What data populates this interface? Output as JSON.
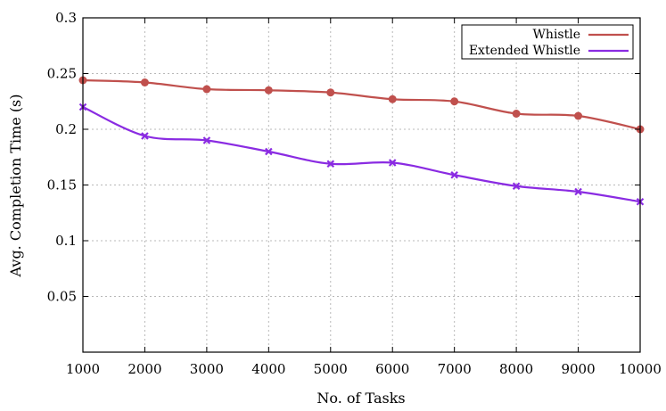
{
  "chart_data": {
    "type": "line",
    "title": "",
    "xlabel": "No. of Tasks",
    "ylabel": "Avg. Completion Time (s)",
    "x": [
      1000,
      2000,
      3000,
      4000,
      5000,
      6000,
      7000,
      8000,
      9000,
      10000
    ],
    "xlim": [
      1000,
      10000
    ],
    "ylim": [
      0,
      0.3
    ],
    "yticks": [
      "0.05",
      "0.1",
      "0.15",
      "0.2",
      "0.25",
      "0.3"
    ],
    "xticks": [
      "1000",
      "2000",
      "3000",
      "4000",
      "5000",
      "6000",
      "7000",
      "8000",
      "9000",
      "10000"
    ],
    "grid": true,
    "legend_position": "top-right",
    "series": [
      {
        "name": "Whistle",
        "color": "#c0504d",
        "marker": "circle",
        "values": [
          0.244,
          0.242,
          0.236,
          0.235,
          0.233,
          0.227,
          0.225,
          0.214,
          0.212,
          0.2
        ]
      },
      {
        "name": "Extended Whistle",
        "color": "#8a2be2",
        "marker": "x",
        "values": [
          0.22,
          0.194,
          0.19,
          0.18,
          0.169,
          0.17,
          0.159,
          0.149,
          0.144,
          0.135
        ]
      }
    ]
  }
}
